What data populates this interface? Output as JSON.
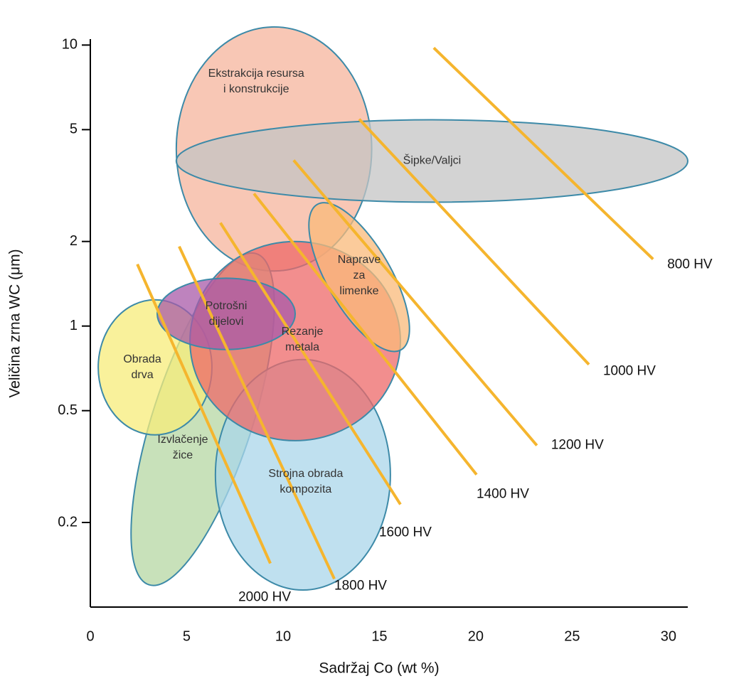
{
  "chart_data": {
    "type": "ellipse",
    "x_label": "Sadržaj Co (wt %)",
    "y_label": "Veličina zrna WC (μm)",
    "xlim": [
      0,
      31
    ],
    "xticks": [
      0,
      5,
      10,
      15,
      20,
      25,
      30
    ],
    "ylim": [
      0.1,
      10.5
    ],
    "yticks": [
      0.2,
      0.5,
      1,
      2,
      5,
      10
    ],
    "log_y": true,
    "regions": [
      {
        "label": [
          "Ekstrakcija resursa",
          "i konstrukcije"
        ],
        "color": "#f6b49c",
        "x": [
          4.46,
          14.6
        ],
        "y": [
          1.57,
          11.6
        ]
      },
      {
        "label": [
          "Šipke/Valjci"
        ],
        "color": "#c4c4c4",
        "x": [
          4.46,
          31.0
        ],
        "y": [
          2.76,
          5.42
        ]
      },
      {
        "label": [
          "Izvlačenje",
          "žice"
        ],
        "color": "#b5d7a3",
        "x": [
          3.25,
          8.41
        ],
        "y": [
          0.112,
          1.94
        ]
      },
      {
        "label": [
          "Strojna obrada",
          "kompozita"
        ],
        "color": "#a9d5ea",
        "x": [
          6.49,
          15.57
        ],
        "y": [
          0.115,
          0.76
        ]
      },
      {
        "label": [
          "Obrada",
          "drva"
        ],
        "color": "#f7ec7a",
        "x": [
          0.41,
          6.31
        ],
        "y": [
          0.41,
          1.24
        ]
      },
      {
        "label": [
          "Rezanje",
          "metala"
        ],
        "color": "#ee6868",
        "x": [
          5.17,
          16.09
        ],
        "y": [
          0.391,
          2.0
        ]
      },
      {
        "label": [
          "Naprave",
          "za",
          "limenke"
        ],
        "color": "#f9b97a",
        "x": [
          12.29,
          15.61
        ],
        "y": [
          0.751,
          2.97
        ]
      },
      {
        "label": [
          "Potrošni",
          "dijelovi"
        ],
        "color": "#a859a8",
        "x": [
          3.47,
          10.63
        ],
        "y": [
          0.825,
          1.48
        ]
      }
    ],
    "hardness_lines": [
      {
        "label": "800 HV",
        "color": "#f5b52e",
        "x": [
          17.82,
          29.2
        ],
        "y": [
          9.77,
          1.73
        ]
      },
      {
        "label": "1000 HV",
        "color": "#f5b52e",
        "x": [
          13.95,
          25.87
        ],
        "y": [
          5.45,
          0.73
        ]
      },
      {
        "label": "1200 HV",
        "color": "#f5b52e",
        "x": [
          10.55,
          23.17
        ],
        "y": [
          3.89,
          0.376
        ]
      },
      {
        "label": "1400 HV",
        "color": "#f5b52e",
        "x": [
          8.49,
          20.04
        ],
        "y": [
          2.96,
          0.296
        ]
      },
      {
        "label": "1600 HV",
        "color": "#f5b52e",
        "x": [
          6.75,
          16.09
        ],
        "y": [
          2.33,
          0.232
        ]
      },
      {
        "label": "1800 HV",
        "color": "#f5b52e",
        "x": [
          4.61,
          12.66
        ],
        "y": [
          1.92,
          0.126
        ]
      },
      {
        "label": "2000 HV",
        "color": "#f5b52e",
        "x": [
          2.44,
          9.34
        ],
        "y": [
          1.66,
          0.143
        ]
      }
    ]
  }
}
